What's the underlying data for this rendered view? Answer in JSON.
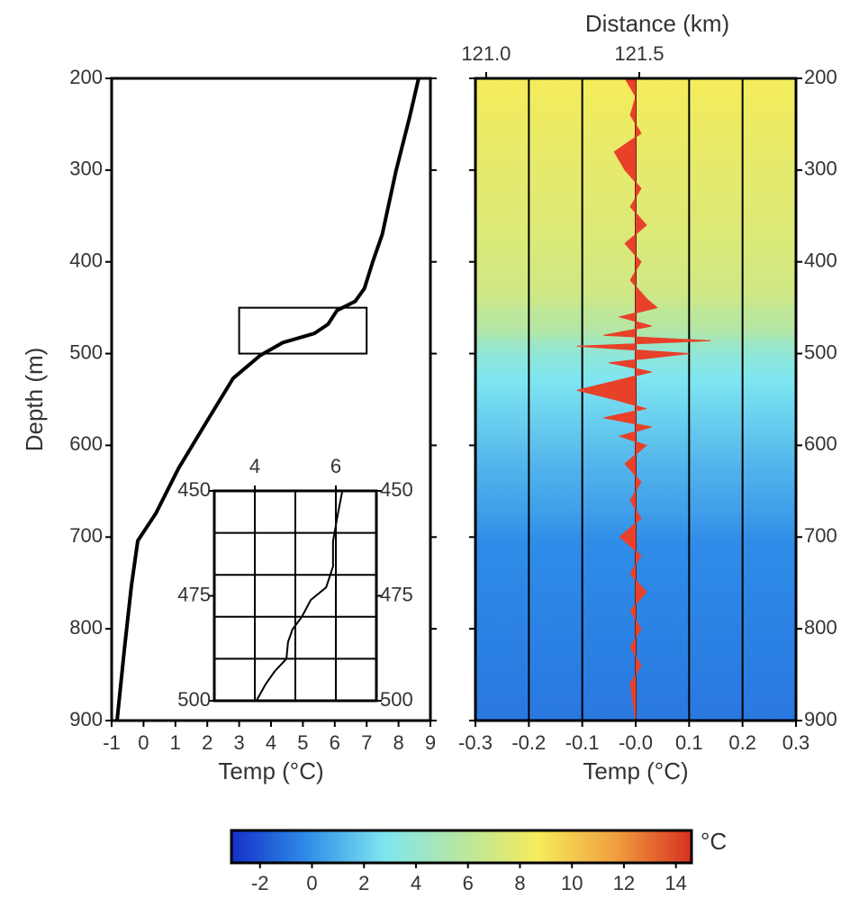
{
  "chart_data": [
    {
      "type": "line",
      "xlabel": "Temp (°C)",
      "ylabel": "Depth (m)",
      "xlim": [
        -1,
        9
      ],
      "xticks": [
        -1,
        0,
        1,
        2,
        3,
        4,
        5,
        6,
        7,
        8,
        9
      ],
      "ylim": [
        200,
        900
      ],
      "yticks": [
        200,
        300,
        400,
        500,
        600,
        700,
        800,
        900
      ],
      "color": "#000000",
      "x": [
        8.63,
        8.35,
        7.92,
        7.49,
        7.2,
        6.93,
        6.64,
        6.07,
        5.79,
        5.36,
        4.37,
        3.66,
        2.81,
        1.95,
        1.1,
        0.39,
        -0.18,
        -0.38,
        -0.6,
        -0.83
      ],
      "y": [
        200,
        242,
        301,
        370,
        399,
        429,
        443,
        453,
        468,
        478,
        488,
        502,
        527,
        576,
        625,
        674,
        704,
        753,
        822,
        900
      ]
    },
    {
      "type": "line",
      "xlim": [
        3,
        7
      ],
      "xticks": [
        4,
        6
      ],
      "ylim": [
        450,
        500
      ],
      "yticks": [
        450,
        475,
        500
      ],
      "xgrid": [
        3,
        4,
        5,
        6,
        7
      ],
      "ygrid": [
        450,
        460,
        470,
        480,
        490,
        500
      ],
      "color": "#000000",
      "x": [
        6.16,
        6.04,
        5.93,
        5.93,
        5.76,
        5.38,
        5.16,
        4.93,
        4.82,
        4.78,
        4.49,
        4.27,
        4.04
      ],
      "y": [
        450,
        456,
        462,
        468,
        473,
        476,
        480,
        483,
        486,
        490,
        493,
        496,
        500
      ]
    },
    {
      "type": "area",
      "xlabel": "Temp (°C)",
      "x2label": "Distance (km)",
      "xlim": [
        -0.3,
        0.3
      ],
      "xticks": [
        -0.3,
        -0.2,
        -0.1,
        {
          "value": 0,
          "label": "-0.0"
        },
        0.1,
        0.2,
        0.3
      ],
      "x2lim": [
        120.965,
        122.012
      ],
      "x2ticks": [
        {
          "value": 121,
          "label": "121.0"
        },
        121.5
      ],
      "ylim": [
        200,
        900
      ],
      "yticks": [
        200,
        300,
        400,
        500,
        600,
        700,
        800,
        900
      ],
      "grid": true,
      "color": "#e8412a",
      "x": [
        -0.02,
        0.0,
        -0.01,
        0.01,
        -0.04,
        -0.02,
        0.01,
        -0.01,
        0.02,
        -0.02,
        0.01,
        -0.01,
        0.02,
        0.04,
        -0.03,
        0.03,
        -0.06,
        0.14,
        -0.11,
        0.1,
        -0.05,
        0.03,
        -0.11,
        -0.04,
        0.02,
        -0.06,
        0.03,
        -0.03,
        0.02,
        -0.02,
        0.01,
        -0.01,
        0.01,
        -0.03,
        0.01,
        -0.01,
        0.02,
        -0.01,
        0.01,
        -0.01,
        0.01,
        -0.01,
        0.0
      ],
      "y": [
        200,
        220,
        240,
        260,
        280,
        300,
        320,
        340,
        360,
        380,
        400,
        420,
        440,
        450,
        460,
        470,
        480,
        486,
        492,
        500,
        510,
        520,
        540,
        550,
        560,
        570,
        580,
        590,
        600,
        620,
        640,
        660,
        680,
        700,
        720,
        740,
        760,
        780,
        800,
        820,
        840,
        860,
        900
      ]
    },
    {
      "type": "colorbar",
      "unit": "°C",
      "clim": [
        -3.1,
        14.6
      ],
      "ticks": [
        -2,
        0,
        2,
        4,
        6,
        8,
        10,
        12,
        14
      ],
      "colors": [
        "#1530c8",
        "#2f8ee8",
        "#7fe6f0",
        "#b8e6a0",
        "#f5ec5a",
        "#f0a040",
        "#d83020"
      ]
    }
  ]
}
